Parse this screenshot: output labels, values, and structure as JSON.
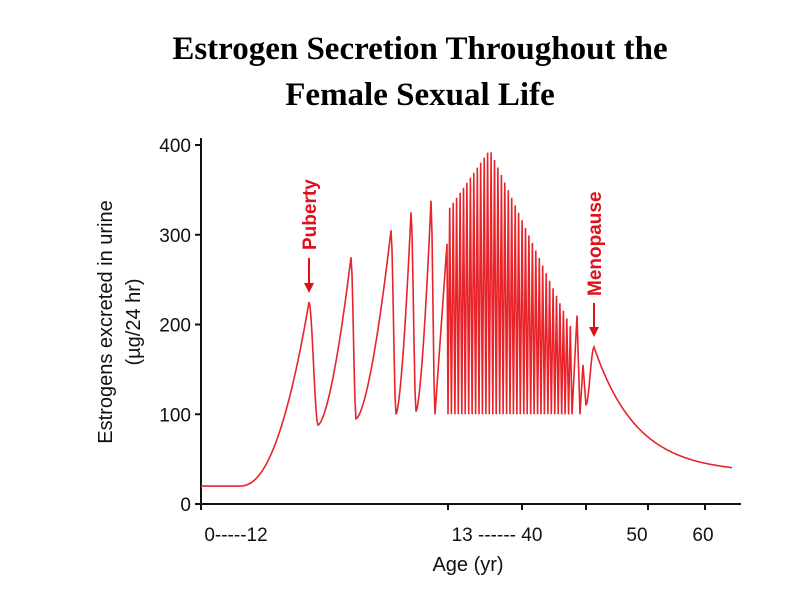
{
  "chart_data": {
    "type": "line",
    "title_lines": [
      "Estrogen Secretion Throughout the",
      "Female Sexual Life"
    ],
    "xlabel": "Age (yr)",
    "ylabel_lines": [
      "Estrogens excreted in urine",
      "(µg/24 hr)"
    ],
    "ylim": [
      0,
      400
    ],
    "yticks": [
      {
        "value": 0,
        "label": "0"
      },
      {
        "value": 100,
        "label": "100"
      },
      {
        "value": 200,
        "label": "200"
      },
      {
        "value": 300,
        "label": "300"
      },
      {
        "value": 400,
        "label": "400"
      }
    ],
    "xticks": [
      {
        "label": "0-----12"
      },
      {
        "label": "13 ------ 40"
      },
      {
        "label": "50"
      },
      {
        "label": "60"
      }
    ],
    "line_color": "#e8232a",
    "annotation_color": "#e0101a",
    "annotations": [
      {
        "label": "Puberty",
        "arrow_to_value": 225
      },
      {
        "label": "Menopause",
        "arrow_to_value": 175
      }
    ],
    "series": [
      {
        "description_points": {
          "baseline": 20,
          "puberty_peak": 225,
          "early_cycle_peaks": [
            275,
            305,
            325,
            338
          ],
          "early_cycle_troughs": [
            88,
            95,
            100,
            103
          ],
          "cycle_trough": 100,
          "max_cycle_peak": 395,
          "menopause_peak": 175,
          "final_level": 35
        }
      }
    ]
  }
}
